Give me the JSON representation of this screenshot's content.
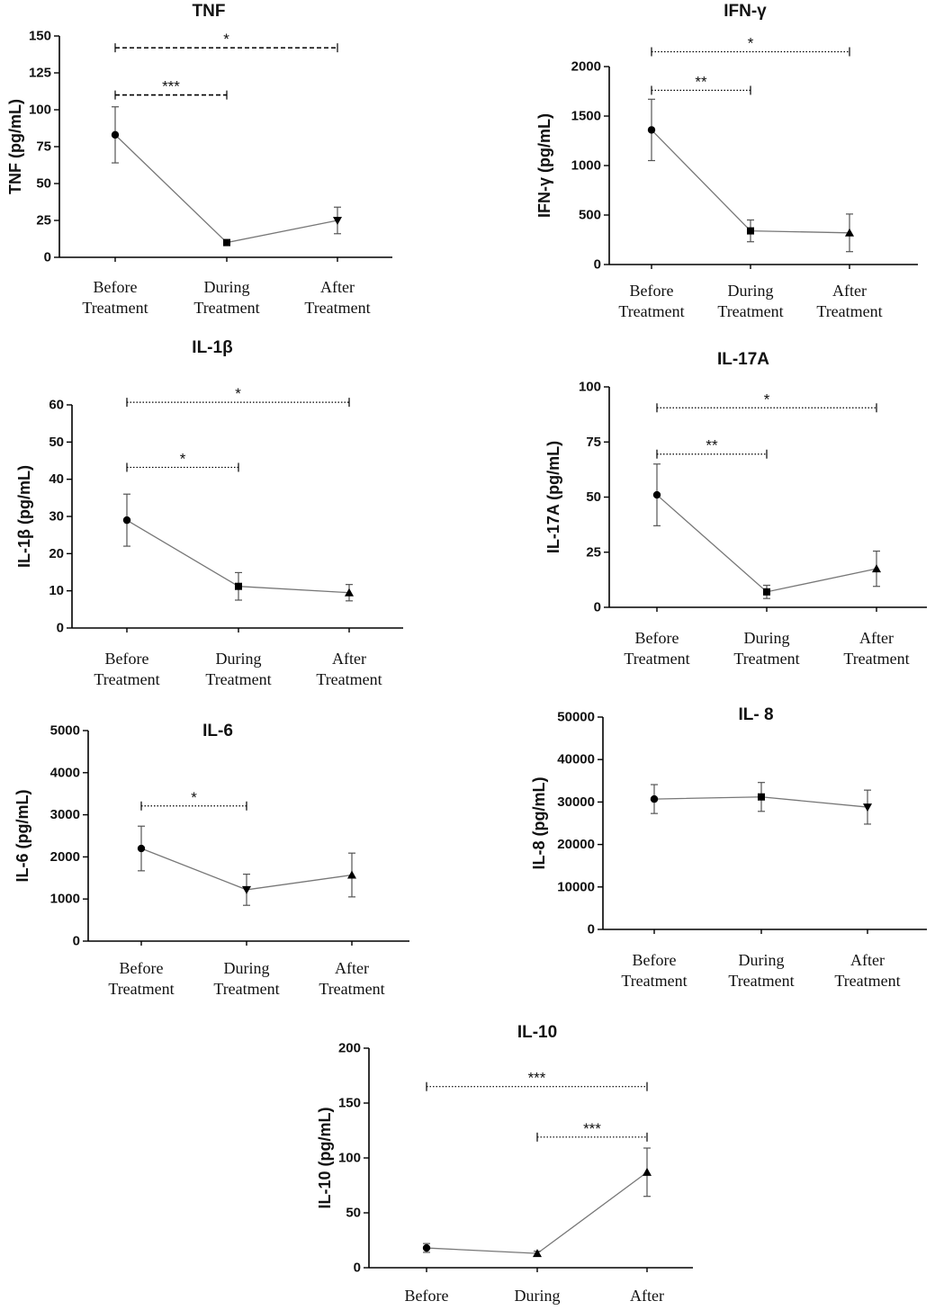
{
  "chart_data": [
    {
      "type": "line",
      "title": "TNF",
      "ylabel": "TNF (pg/mL)",
      "ylim": [
        0,
        150
      ],
      "yticks": [
        0,
        25,
        50,
        75,
        100,
        125,
        150
      ],
      "categories": [
        "Before|Treatment",
        "During|Treatment",
        "After|Treatment"
      ],
      "markers": [
        "circle",
        "square",
        "triangle-down"
      ],
      "series": [
        {
          "name": "TNF",
          "values": [
            83,
            10,
            25
          ],
          "errors": [
            19,
            1,
            9
          ]
        }
      ],
      "significance": [
        {
          "from": 0,
          "to": 2,
          "label": "*",
          "level": 142
        },
        {
          "from": 0,
          "to": 1,
          "label": "***",
          "level": 110
        }
      ]
    },
    {
      "type": "line",
      "title": "IFN-γ",
      "ylabel": "IFN-γ (pg/mL)",
      "ylim": [
        0,
        2000
      ],
      "yticks": [
        0,
        500,
        1000,
        1500,
        2000
      ],
      "categories": [
        "Before|Treatment",
        "During|Treatment",
        "After|Treatment"
      ],
      "markers": [
        "circle",
        "square",
        "triangle-up"
      ],
      "series": [
        {
          "name": "IFN-γ",
          "values": [
            1360,
            340,
            320
          ],
          "errors": [
            310,
            110,
            190
          ]
        }
      ],
      "significance": [
        {
          "from": 0,
          "to": 2,
          "label": "*",
          "level": 2150
        },
        {
          "from": 0,
          "to": 1,
          "label": "**",
          "level": 1760
        }
      ]
    },
    {
      "type": "line",
      "title": "IL-1β",
      "ylabel": "IL-1β (pg/mL)",
      "ylim": [
        0,
        60
      ],
      "yticks": [
        0,
        10,
        20,
        30,
        40,
        50,
        60
      ],
      "categories": [
        "Before|Treatment",
        "During|Treatment",
        "After|Treatment"
      ],
      "markers": [
        "circle",
        "square",
        "triangle-up"
      ],
      "series": [
        {
          "name": "IL-1β",
          "values": [
            29,
            11.2,
            9.5
          ],
          "errors": [
            7,
            3.7,
            2.2
          ]
        }
      ],
      "significance": [
        {
          "from": 0,
          "to": 2,
          "label": "*",
          "level": 60.7
        },
        {
          "from": 0,
          "to": 1,
          "label": "*",
          "level": 43.2
        }
      ]
    },
    {
      "type": "line",
      "title": "IL-17A",
      "ylabel": "IL-17A (pg/mL)",
      "ylim": [
        0,
        100
      ],
      "yticks": [
        0,
        25,
        50,
        75,
        100
      ],
      "categories": [
        "Before|Treatment",
        "During|Treatment",
        "After|Treatment"
      ],
      "markers": [
        "circle",
        "square",
        "triangle-up"
      ],
      "series": [
        {
          "name": "IL-17A",
          "values": [
            51,
            7,
            17.5
          ],
          "errors": [
            14,
            3,
            8
          ]
        }
      ],
      "significance": [
        {
          "from": 0,
          "to": 2,
          "label": "*",
          "level": 90.5
        },
        {
          "from": 0,
          "to": 1,
          "label": "**",
          "level": 69.5
        }
      ]
    },
    {
      "type": "line",
      "title": "IL-6",
      "ylabel": "IL-6 (pg/mL)",
      "ylim": [
        0,
        5000
      ],
      "yticks": [
        0,
        1000,
        2000,
        3000,
        4000,
        5000
      ],
      "categories": [
        "Before|Treatment",
        "During|Treatment",
        "After|Treatment"
      ],
      "markers": [
        "circle",
        "triangle-down",
        "triangle-up"
      ],
      "series": [
        {
          "name": "IL-6",
          "values": [
            2200,
            1220,
            1570
          ],
          "errors": [
            530,
            370,
            520
          ]
        }
      ],
      "significance": [
        {
          "from": 0,
          "to": 1,
          "label": "*",
          "level": 3210
        }
      ]
    },
    {
      "type": "line",
      "title": "IL- 8",
      "ylabel": "IL-8 (pg/mL)",
      "ylim": [
        0,
        50000
      ],
      "yticks": [
        0,
        10000,
        20000,
        30000,
        40000,
        50000
      ],
      "categories": [
        "Before|Treatment",
        "During|Treatment",
        "After|Treatment"
      ],
      "markers": [
        "circle",
        "square",
        "triangle-down"
      ],
      "series": [
        {
          "name": "IL-8",
          "values": [
            30700,
            31200,
            28800
          ],
          "errors": [
            3400,
            3400,
            4000
          ]
        }
      ],
      "significance": []
    },
    {
      "type": "line",
      "title": "IL-10",
      "ylabel": "IL-10 (pg/mL)",
      "ylim": [
        0,
        200
      ],
      "yticks": [
        0,
        50,
        100,
        150,
        200
      ],
      "categories": [
        "Before|Treatment",
        "During|Treatment",
        "After|Treatment"
      ],
      "markers": [
        "circle",
        "triangle-up",
        "triangle-up"
      ],
      "series": [
        {
          "name": "IL-10",
          "values": [
            18,
            13,
            87
          ],
          "errors": [
            4,
            2,
            22
          ]
        }
      ],
      "significance": [
        {
          "from": 0,
          "to": 2,
          "label": "***",
          "level": 165
        },
        {
          "from": 1,
          "to": 2,
          "label": "***",
          "level": 119
        }
      ]
    }
  ]
}
